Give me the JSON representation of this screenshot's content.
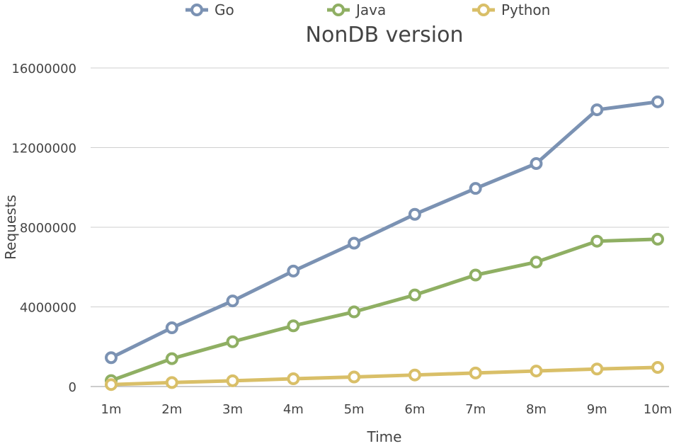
{
  "chart_data": {
    "type": "line",
    "title": "NonDB version",
    "xlabel": "Time",
    "ylabel": "Requests",
    "categories": [
      "1m",
      "2m",
      "3m",
      "4m",
      "5m",
      "6m",
      "7m",
      "8m",
      "9m",
      "10m"
    ],
    "ylim": [
      0,
      16000000
    ],
    "yticks": [
      "0",
      "4000000",
      "8000000",
      "12000000",
      "16000000"
    ],
    "grid": true,
    "legend_position": "top",
    "series": [
      {
        "name": "Go",
        "color": "#7b92b3",
        "values": [
          1450000,
          2950000,
          4300000,
          5800000,
          7200000,
          8650000,
          9950000,
          11200000,
          13900000,
          14300000
        ]
      },
      {
        "name": "Java",
        "color": "#8faf63",
        "values": [
          300000,
          1400000,
          2250000,
          3050000,
          3750000,
          4600000,
          5600000,
          6250000,
          7300000,
          7400000
        ]
      },
      {
        "name": "Python",
        "color": "#d9bf68",
        "values": [
          100000,
          200000,
          290000,
          390000,
          480000,
          580000,
          680000,
          780000,
          880000,
          960000
        ]
      }
    ]
  }
}
